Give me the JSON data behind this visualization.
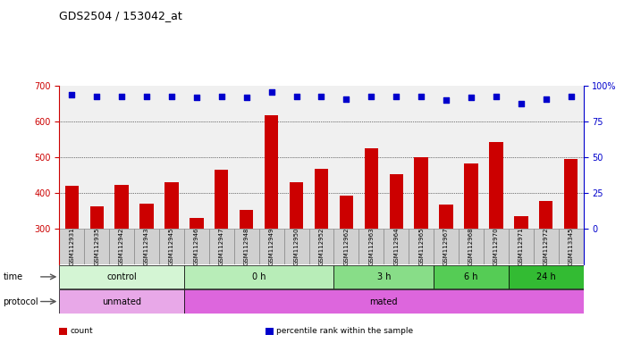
{
  "title": "GDS2504 / 153042_at",
  "samples": [
    "GSM112931",
    "GSM112935",
    "GSM112942",
    "GSM112943",
    "GSM112945",
    "GSM112946",
    "GSM112947",
    "GSM112948",
    "GSM112949",
    "GSM112950",
    "GSM112952",
    "GSM112962",
    "GSM112963",
    "GSM112964",
    "GSM112965",
    "GSM112967",
    "GSM112968",
    "GSM112970",
    "GSM112971",
    "GSM112972",
    "GSM113345"
  ],
  "counts": [
    420,
    362,
    422,
    370,
    430,
    330,
    465,
    352,
    618,
    430,
    468,
    392,
    525,
    453,
    500,
    368,
    482,
    543,
    335,
    378,
    495
  ],
  "percentile_ranks": [
    94,
    93,
    93,
    93,
    93,
    92,
    93,
    92,
    96,
    93,
    93,
    91,
    93,
    93,
    93,
    90,
    92,
    93,
    88,
    91,
    93
  ],
  "bar_color": "#cc0000",
  "dot_color": "#0000cc",
  "ylim_left": [
    300,
    700
  ],
  "ylim_right": [
    0,
    100
  ],
  "yticks_left": [
    300,
    400,
    500,
    600,
    700
  ],
  "yticks_right": [
    0,
    25,
    50,
    75,
    100
  ],
  "grid_values": [
    400,
    500,
    600
  ],
  "time_groups": [
    {
      "label": "control",
      "start": 0,
      "end": 5,
      "color": "#d4f5d4"
    },
    {
      "label": "0 h",
      "start": 5,
      "end": 11,
      "color": "#b8edb8"
    },
    {
      "label": "3 h",
      "start": 11,
      "end": 15,
      "color": "#88dd88"
    },
    {
      "label": "6 h",
      "start": 15,
      "end": 18,
      "color": "#55cc55"
    },
    {
      "label": "24 h",
      "start": 18,
      "end": 21,
      "color": "#33bb33"
    }
  ],
  "protocol_groups": [
    {
      "label": "unmated",
      "start": 0,
      "end": 5,
      "color": "#e8a8e8"
    },
    {
      "label": "mated",
      "start": 5,
      "end": 21,
      "color": "#dd66dd"
    }
  ],
  "bg_color": "#ffffff",
  "plot_bg_color": "#f0f0f0",
  "sample_bg_color": "#d0d0d0",
  "legend_items": [
    {
      "color": "#cc0000",
      "label": "count"
    },
    {
      "color": "#0000cc",
      "label": "percentile rank within the sample"
    }
  ]
}
